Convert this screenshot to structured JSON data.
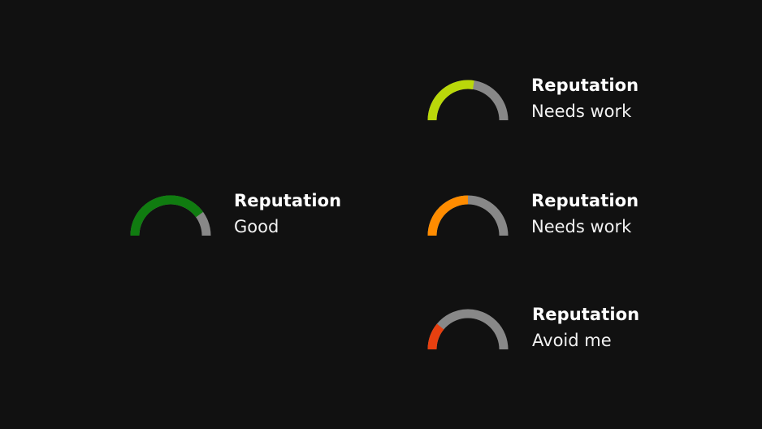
{
  "meters": [
    {
      "id": "good",
      "title": "Reputation",
      "status": "Good",
      "level": 0.8,
      "color": "#107c10",
      "track_color": "#888888"
    },
    {
      "id": "yellowgreen",
      "title": "Reputation",
      "status": "Needs work",
      "level": 0.55,
      "color": "#bad80a",
      "track_color": "#888888"
    },
    {
      "id": "orange",
      "title": "Reputation",
      "status": "Needs work",
      "level": 0.5,
      "color": "#ff8c00",
      "track_color": "#888888"
    },
    {
      "id": "red",
      "title": "Reputation",
      "status": "Avoid me",
      "level": 0.22,
      "color": "#e74010",
      "track_color": "#888888"
    }
  ]
}
